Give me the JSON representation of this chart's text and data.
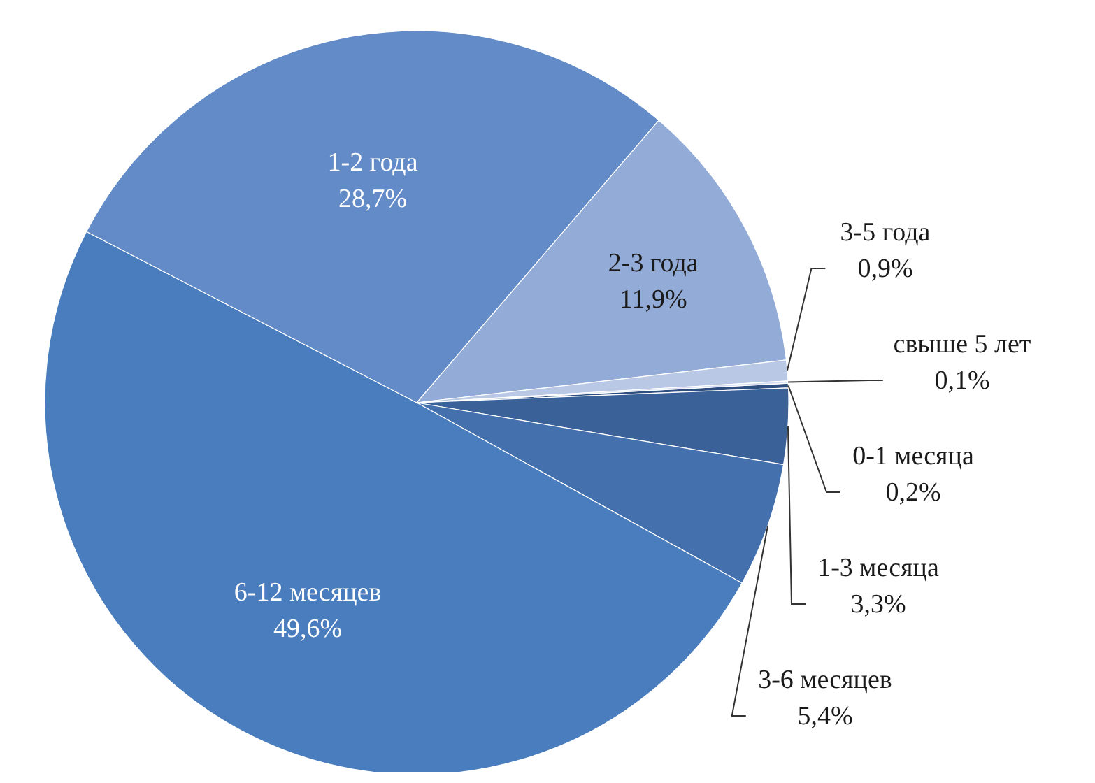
{
  "chart_data": {
    "type": "pie",
    "categories": [
      "0-1 месяца",
      "1-3 месяца",
      "3-6 месяцев",
      "6-12 месяцев",
      "1-2 года",
      "2-3 года",
      "3-5 года",
      "свыше 5 лет"
    ],
    "values": [
      0.2,
      3.3,
      5.4,
      49.6,
      28.7,
      11.9,
      0.9,
      0.1
    ],
    "value_labels": [
      "0,2%",
      "3,3%",
      "5,4%",
      "49,6%",
      "28,7%",
      "11,9%",
      "0,9%",
      "0,1%"
    ],
    "colors": [
      "#2f4f80",
      "#3b6199",
      "#4471ad",
      "#4a7dbd",
      "#628bc8",
      "#93abd7",
      "#b9c8e4",
      "#d4def0"
    ]
  }
}
